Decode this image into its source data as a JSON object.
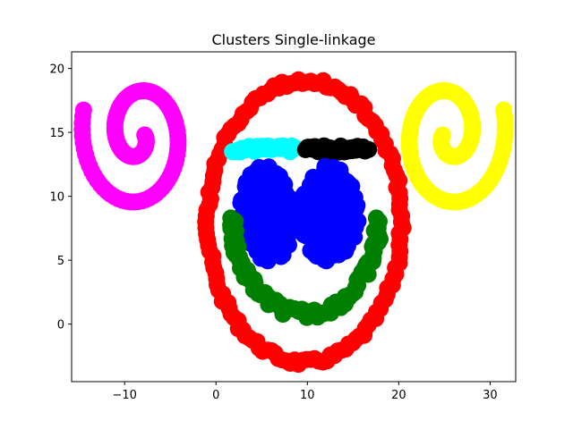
{
  "chart_data": {
    "type": "scatter",
    "title": "Clusters Single-linkage",
    "xlabel": "",
    "ylabel": "",
    "xlim": [
      -15.8,
      32.8
    ],
    "ylim": [
      -4.5,
      21.3
    ],
    "xticks": [
      -10,
      0,
      10,
      20,
      30
    ],
    "yticks": [
      0,
      5,
      10,
      15,
      20
    ],
    "xtick_labels": [
      "−10",
      "0",
      "10",
      "20",
      "30"
    ],
    "ytick_labels": [
      "0",
      "5",
      "10",
      "15",
      "20"
    ],
    "grid": false,
    "legend": "none",
    "series": [
      {
        "color": "#ff00ff",
        "shape": "spiral",
        "center": [
          -8.5,
          14.8
        ],
        "r_start": 0.7,
        "r_end": 6.3,
        "theta_start_deg": 0,
        "turns": 1.55,
        "direction": "clockwise",
        "points": 120
      },
      {
        "color": "#ffff00",
        "shape": "spiral",
        "center": [
          25.5,
          14.8
        ],
        "r_start": 0.7,
        "r_end": 6.3,
        "theta_start_deg": 180,
        "turns": 1.55,
        "direction": "counterclockwise",
        "points": 120
      },
      {
        "color": "#ff0000",
        "shape": "ellipse",
        "center": [
          9.7,
          8.0
        ],
        "radii": [
          10.6,
          11.0
        ],
        "points": 150
      },
      {
        "color": "#00ffff",
        "shape": "segment",
        "x_range": [
          1.8,
          8.7
        ],
        "y": 13.7,
        "points": 35
      },
      {
        "color": "#000000",
        "shape": "segment",
        "x_range": [
          9.8,
          16.7
        ],
        "y": 13.7,
        "points": 35
      },
      {
        "color": "#0000ff",
        "shape": "blob",
        "center": [
          5.6,
          8.6
        ],
        "radii": [
          3.2,
          3.8
        ],
        "points": 180
      },
      {
        "color": "#0000ff",
        "shape": "blob",
        "center": [
          12.4,
          8.6
        ],
        "radii": [
          3.2,
          3.8
        ],
        "points": 180
      },
      {
        "color": "#008000",
        "shape": "arc",
        "center": [
          9.8,
          8.3
        ],
        "radii": [
          8.0,
          7.5
        ],
        "theta_range_deg": [
          180,
          360
        ],
        "points": 90
      }
    ]
  }
}
